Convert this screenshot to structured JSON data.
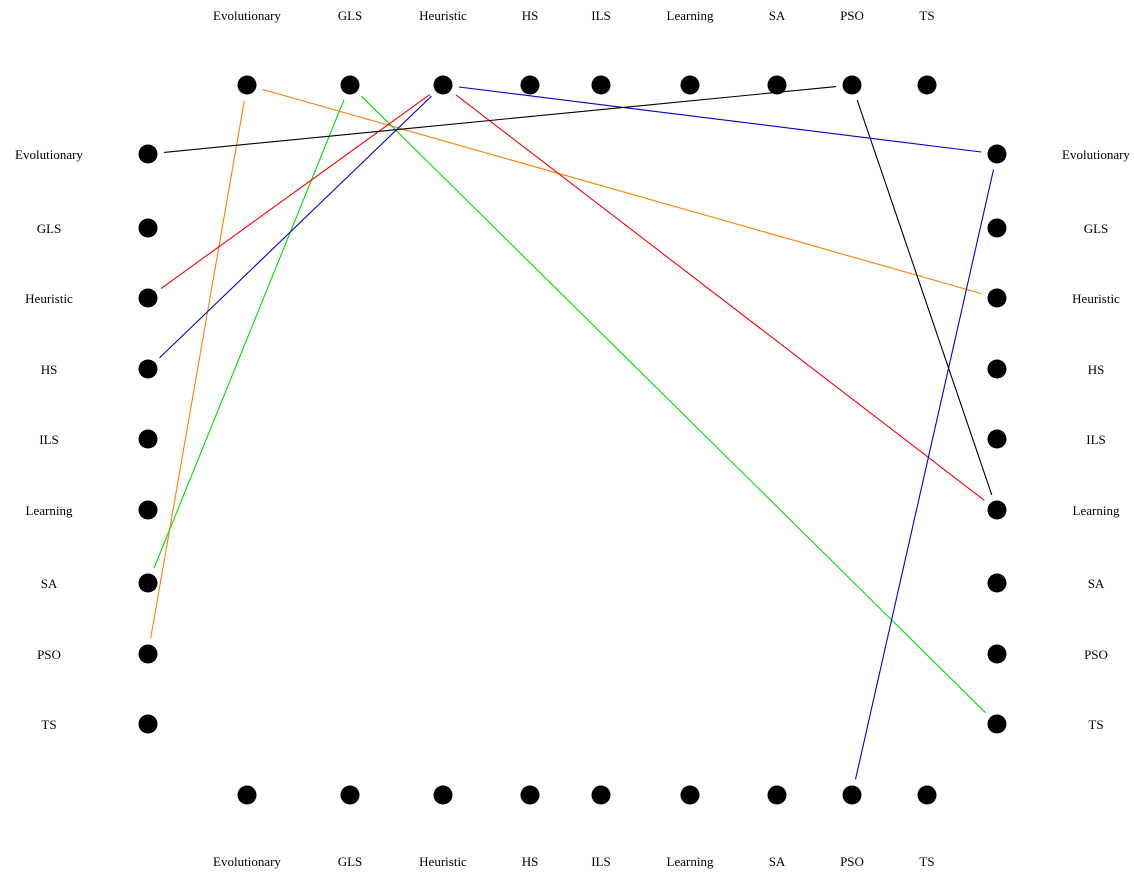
{
  "methods": [
    "Evolutionary",
    "GLS",
    "Heuristic",
    "HS",
    "ILS",
    "Learning",
    "SA",
    "PSO",
    "TS"
  ],
  "connections": [
    {
      "from": {
        "side": "top",
        "node": "Evolutionary"
      },
      "to": {
        "side": "right",
        "node": "Heuristic"
      },
      "color": "#ff8000"
    },
    {
      "from": {
        "side": "top",
        "node": "Evolutionary"
      },
      "to": {
        "side": "left",
        "node": "PSO"
      },
      "color": "#ff8000"
    },
    {
      "from": {
        "side": "top",
        "node": "GLS"
      },
      "to": {
        "side": "right",
        "node": "TS"
      },
      "color": "#00dd00"
    },
    {
      "from": {
        "side": "top",
        "node": "GLS"
      },
      "to": {
        "side": "left",
        "node": "SA"
      },
      "color": "#00dd00"
    },
    {
      "from": {
        "side": "top",
        "node": "Heuristic"
      },
      "to": {
        "side": "right",
        "node": "Learning"
      },
      "color": "#ff0000"
    },
    {
      "from": {
        "side": "top",
        "node": "Heuristic"
      },
      "to": {
        "side": "left",
        "node": "Heuristic"
      },
      "color": "#ff0000"
    },
    {
      "from": {
        "side": "top",
        "node": "Heuristic"
      },
      "to": {
        "side": "right",
        "node": "Evolutionary"
      },
      "color": "#0000cc"
    },
    {
      "from": {
        "side": "top",
        "node": "Heuristic"
      },
      "to": {
        "side": "left",
        "node": "HS"
      },
      "color": "#0000cc"
    },
    {
      "from": {
        "side": "top",
        "node": "PSO"
      },
      "to": {
        "side": "left",
        "node": "Evolutionary"
      },
      "color": "#000000"
    },
    {
      "from": {
        "side": "top",
        "node": "PSO"
      },
      "to": {
        "side": "right",
        "node": "Learning"
      },
      "color": "#000000"
    },
    {
      "from": {
        "side": "bottom",
        "node": "PSO"
      },
      "to": {
        "side": "right",
        "node": "Evolutionary"
      },
      "color": "#0000cc"
    }
  ]
}
